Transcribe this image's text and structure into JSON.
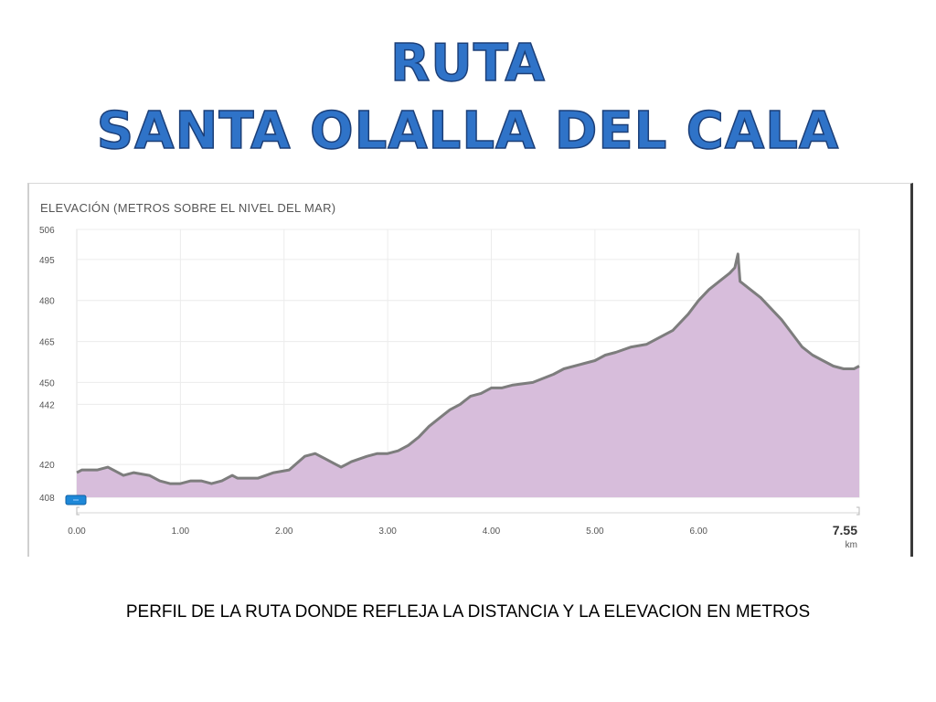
{
  "title_line1": "RUTA",
  "title_line2": "SANTA OLALLA DEL CALA",
  "caption": "PERFIL DE LA RUTA DONDE REFLEJA LA DISTANCIA Y LA ELEVACION EN METROS",
  "chart_data": {
    "type": "area",
    "title": "ELEVACIÓN (METROS SOBRE EL NIVEL DEL MAR)",
    "xlabel": "km",
    "ylabel": "",
    "x_tick_labels": [
      "0.00",
      "1.00",
      "2.00",
      "3.00",
      "4.00",
      "5.00",
      "6.00"
    ],
    "x_end_label": "7.55",
    "y_tick_labels": [
      "506",
      "495",
      "480",
      "465",
      "450",
      "442",
      "420",
      "408"
    ],
    "y_tick_values": [
      506,
      495,
      480,
      465,
      450,
      442,
      420,
      408
    ],
    "xlim": [
      0,
      7.55
    ],
    "ylim": [
      408,
      506
    ],
    "grid": true,
    "fill_color": "#d7bddb",
    "line_color": "#7d7d7d",
    "accent_color": "#1e88d8",
    "series": [
      {
        "x": [
          0.0,
          0.05,
          0.2,
          0.3,
          0.4,
          0.45,
          0.55,
          0.7,
          0.8,
          0.9,
          1.0,
          1.1,
          1.2,
          1.3,
          1.4,
          1.5,
          1.55,
          1.65,
          1.75,
          1.9,
          2.05,
          2.2,
          2.3,
          2.4,
          2.5,
          2.55,
          2.65,
          2.8,
          2.9,
          3.0,
          3.1,
          3.2,
          3.3,
          3.4,
          3.5,
          3.6,
          3.7,
          3.8,
          3.9,
          4.0,
          4.1,
          4.2,
          4.4,
          4.6,
          4.7,
          4.9,
          5.0,
          5.1,
          5.2,
          5.35,
          5.5,
          5.6,
          5.75,
          5.9,
          6.0,
          6.1,
          6.2,
          6.3,
          6.35,
          6.38,
          6.4,
          6.5,
          6.6,
          6.7,
          6.8,
          6.9,
          7.0,
          7.1,
          7.2,
          7.3,
          7.4,
          7.5,
          7.55
        ],
        "y": [
          417,
          418,
          418,
          419,
          417,
          416,
          417,
          416,
          414,
          413,
          413,
          414,
          414,
          413,
          414,
          416,
          415,
          415,
          415,
          417,
          418,
          423,
          424,
          422,
          420,
          419,
          421,
          423,
          424,
          424,
          425,
          427,
          430,
          434,
          437,
          440,
          442,
          445,
          446,
          448,
          448,
          449,
          450,
          453,
          455,
          457,
          458,
          460,
          461,
          463,
          464,
          466,
          469,
          475,
          480,
          484,
          487,
          490,
          492,
          497,
          487,
          484,
          481,
          477,
          473,
          468,
          463,
          460,
          458,
          456,
          455,
          455,
          456
        ]
      }
    ]
  }
}
